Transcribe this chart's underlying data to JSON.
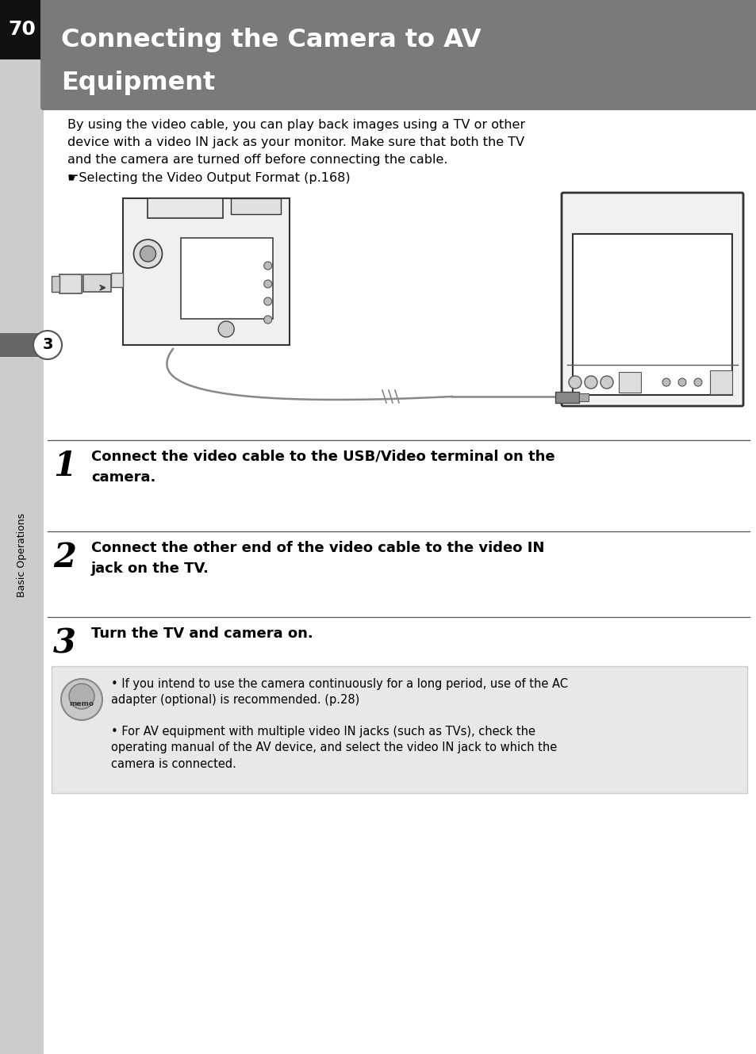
{
  "page_number": "70",
  "title_line1": "Connecting the Camera to AV",
  "title_line2": "Equipment",
  "title_bg_color": "#7a7a7a",
  "title_text_color": "#ffffff",
  "page_bg_color": "#ffffff",
  "left_sidebar_color": "#cccccc",
  "sidebar_band_color": "#666666",
  "sidebar_number_bg": "#111111",
  "sidebar_text": "Basic Operations",
  "intro_text": "By using the video cable, you can play back images using a TV or other\ndevice with a video IN jack as your monitor. Make sure that both the TV\nand the camera are turned off before connecting the cable.\n☛Selecting the Video Output Format (p.168)",
  "step1_number": "1",
  "step1_text": "Connect the video cable to the USB/Video terminal on the\ncamera.",
  "step2_number": "2",
  "step2_text": "Connect the other end of the video cable to the video IN\njack on the TV.",
  "step3_number": "3",
  "step3_text": "Turn the TV and camera on.",
  "memo_bg_color": "#e8e8e8",
  "memo_border_color": "#cccccc",
  "memo_bullet1": "If you intend to use the camera continuously for a long period, use of the AC\nadapter (optional) is recommended. (p.28)",
  "memo_bullet2": "For AV equipment with multiple video IN jacks (such as TVs), check the\noperating manual of the AV device, and select the video IN jack to which the\ncamera is connected.",
  "body_text_color": "#000000"
}
